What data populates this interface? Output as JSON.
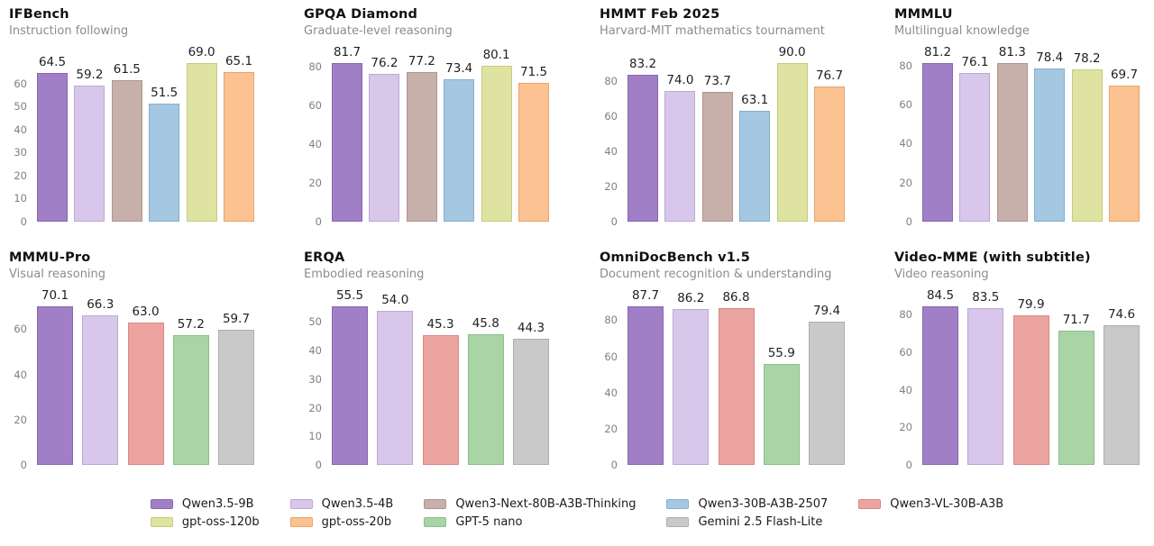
{
  "models": [
    {
      "name": "Qwen3.5-9B",
      "color": "#a07fc6",
      "edge": "#8a66ae"
    },
    {
      "name": "Qwen3.5-4B",
      "color": "#d8c7ea",
      "edge": "#bda8d6"
    },
    {
      "name": "Qwen3-Next-80B-A3B-Thinking",
      "color": "#c8b0aa",
      "edge": "#b0948e"
    },
    {
      "name": "Qwen3-30B-A3B-2507",
      "color": "#a4c8e1",
      "edge": "#85afcd"
    },
    {
      "name": "Qwen3-VL-30B-A3B",
      "color": "#eca4a0",
      "edge": "#d98782"
    },
    {
      "name": "gpt-oss-120b",
      "color": "#dee3a2",
      "edge": "#c5cb7f"
    },
    {
      "name": "gpt-oss-20b",
      "color": "#fcc291",
      "edge": "#e5a470"
    },
    {
      "name": "GPT-5 nano",
      "color": "#a9d4a6",
      "edge": "#8bbf88"
    },
    {
      "name": "Gemini 2.5 Flash-Lite",
      "color": "#c9c9c9",
      "edge": "#aeaeae"
    }
  ],
  "legend_order": [
    0,
    5,
    1,
    6,
    2,
    7,
    3,
    8,
    4
  ],
  "chart_data": [
    {
      "type": "bar",
      "title": "IFBench",
      "subtitle": "Instruction following",
      "models": [
        "Qwen3.5-9B",
        "Qwen3.5-4B",
        "Qwen3-Next-80B-A3B-Thinking",
        "Qwen3-30B-A3B-2507",
        "gpt-oss-120b",
        "gpt-oss-20b"
      ],
      "values": [
        64.5,
        59.2,
        61.5,
        51.5,
        69.0,
        65.1
      ],
      "yticks": [
        0,
        10,
        20,
        30,
        40,
        50,
        60
      ]
    },
    {
      "type": "bar",
      "title": "GPQA Diamond",
      "subtitle": "Graduate-level reasoning",
      "models": [
        "Qwen3.5-9B",
        "Qwen3.5-4B",
        "Qwen3-Next-80B-A3B-Thinking",
        "Qwen3-30B-A3B-2507",
        "gpt-oss-120b",
        "gpt-oss-20b"
      ],
      "values": [
        81.7,
        76.2,
        77.2,
        73.4,
        80.1,
        71.5
      ],
      "yticks": [
        0,
        20,
        40,
        60,
        80
      ]
    },
    {
      "type": "bar",
      "title": "HMMT Feb 2025",
      "subtitle": "Harvard-MIT mathematics tournament",
      "models": [
        "Qwen3.5-9B",
        "Qwen3.5-4B",
        "Qwen3-Next-80B-A3B-Thinking",
        "Qwen3-30B-A3B-2507",
        "gpt-oss-120b",
        "gpt-oss-20b"
      ],
      "values": [
        83.2,
        74.0,
        73.7,
        63.1,
        90.0,
        76.7
      ],
      "yticks": [
        0,
        20,
        40,
        60,
        80
      ]
    },
    {
      "type": "bar",
      "title": "MMMLU",
      "subtitle": "Multilingual knowledge",
      "models": [
        "Qwen3.5-9B",
        "Qwen3.5-4B",
        "Qwen3-Next-80B-A3B-Thinking",
        "Qwen3-30B-A3B-2507",
        "gpt-oss-120b",
        "gpt-oss-20b"
      ],
      "values": [
        81.2,
        76.1,
        81.3,
        78.4,
        78.2,
        69.7
      ],
      "yticks": [
        0,
        20,
        40,
        60,
        80
      ]
    },
    {
      "type": "bar",
      "title": "MMMU-Pro",
      "subtitle": "Visual reasoning",
      "models": [
        "Qwen3.5-9B",
        "Qwen3.5-4B",
        "Qwen3-VL-30B-A3B",
        "GPT-5 nano",
        "Gemini 2.5 Flash-Lite"
      ],
      "values": [
        70.1,
        66.3,
        63.0,
        57.2,
        59.7
      ],
      "yticks": [
        0,
        20,
        40,
        60
      ]
    },
    {
      "type": "bar",
      "title": "ERQA",
      "subtitle": "Embodied reasoning",
      "models": [
        "Qwen3.5-9B",
        "Qwen3.5-4B",
        "Qwen3-VL-30B-A3B",
        "GPT-5 nano",
        "Gemini 2.5 Flash-Lite"
      ],
      "values": [
        55.5,
        54.0,
        45.3,
        45.8,
        44.3
      ],
      "yticks": [
        0,
        10,
        20,
        30,
        40,
        50
      ]
    },
    {
      "type": "bar",
      "title": "OmniDocBench v1.5",
      "subtitle": "Document recognition & understanding",
      "models": [
        "Qwen3.5-9B",
        "Qwen3.5-4B",
        "Qwen3-VL-30B-A3B",
        "GPT-5 nano",
        "Gemini 2.5 Flash-Lite"
      ],
      "values": [
        87.7,
        86.2,
        86.8,
        55.9,
        79.4
      ],
      "yticks": [
        0,
        20,
        40,
        60,
        80
      ]
    },
    {
      "type": "bar",
      "title": "Video-MME (with subtitle)",
      "subtitle": "Video reasoning",
      "models": [
        "Qwen3.5-9B",
        "Qwen3.5-4B",
        "Qwen3-VL-30B-A3B",
        "GPT-5 nano",
        "Gemini 2.5 Flash-Lite"
      ],
      "values": [
        84.5,
        83.5,
        79.9,
        71.7,
        74.6
      ],
      "yticks": [
        0,
        20,
        40,
        60,
        80
      ]
    }
  ]
}
